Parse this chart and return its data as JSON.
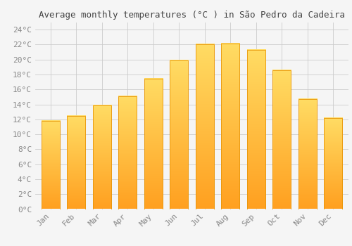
{
  "title": "Average monthly temperatures (°C ) in São Pedro da Cadeira",
  "months": [
    "Jan",
    "Feb",
    "Mar",
    "Apr",
    "May",
    "Jun",
    "Jul",
    "Aug",
    "Sep",
    "Oct",
    "Nov",
    "Dec"
  ],
  "values": [
    11.8,
    12.5,
    13.9,
    15.1,
    17.4,
    19.9,
    22.0,
    22.1,
    21.3,
    18.6,
    14.7,
    12.2
  ],
  "bar_color_top": "#FFD966",
  "bar_color_bottom": "#FFA020",
  "bar_edge_color": "#E8960A",
  "ylim": [
    0,
    25
  ],
  "yticks": [
    0,
    2,
    4,
    6,
    8,
    10,
    12,
    14,
    16,
    18,
    20,
    22,
    24
  ],
  "background_color": "#F5F5F5",
  "grid_color": "#CCCCCC",
  "title_fontsize": 9,
  "tick_fontsize": 8,
  "font_family": "monospace"
}
